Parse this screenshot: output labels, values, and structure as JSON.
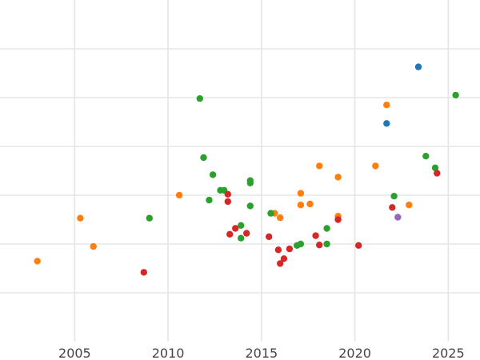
{
  "chart_data": {
    "type": "scatter",
    "title": "",
    "xlabel": "",
    "ylabel": "",
    "grid": true,
    "x_tick_labels": [
      "2005",
      "2010",
      "2015",
      "2020",
      "2025"
    ],
    "x_ticks": [
      2005,
      2010,
      2015,
      2020,
      2025
    ],
    "xlim": [
      2001.0,
      2026.7
    ],
    "y_gridlines": [
      1,
      2,
      3,
      4,
      5,
      6
    ],
    "ylim": [
      0,
      7
    ],
    "series": [
      {
        "color": "#1f77b4",
        "points": [
          [
            2023.4,
            5.63
          ],
          [
            2021.7,
            4.47
          ]
        ]
      },
      {
        "color": "#ff7f0e",
        "points": [
          [
            2003.0,
            1.65
          ],
          [
            2005.3,
            2.53
          ],
          [
            2006.0,
            1.95
          ],
          [
            2010.6,
            3.0
          ],
          [
            2015.7,
            2.63
          ],
          [
            2016.0,
            2.54
          ],
          [
            2017.1,
            3.04
          ],
          [
            2017.1,
            2.8
          ],
          [
            2017.6,
            2.82
          ],
          [
            2018.1,
            3.6
          ],
          [
            2019.1,
            3.37
          ],
          [
            2019.1,
            2.57
          ],
          [
            2021.1,
            3.6
          ],
          [
            2021.7,
            4.85
          ],
          [
            2022.9,
            2.8
          ]
        ]
      },
      {
        "color": "#2ca02c",
        "points": [
          [
            2009.0,
            2.53
          ],
          [
            2011.7,
            4.98
          ],
          [
            2011.9,
            3.77
          ],
          [
            2012.2,
            2.9
          ],
          [
            2012.4,
            3.42
          ],
          [
            2012.8,
            3.1
          ],
          [
            2013.0,
            3.1
          ],
          [
            2013.9,
            2.38
          ],
          [
            2013.9,
            2.12
          ],
          [
            2014.4,
            3.3
          ],
          [
            2014.4,
            3.25
          ],
          [
            2014.4,
            2.78
          ],
          [
            2015.5,
            2.63
          ],
          [
            2016.9,
            1.97
          ],
          [
            2017.1,
            2.0
          ],
          [
            2018.5,
            2.32
          ],
          [
            2018.5,
            2.0
          ],
          [
            2022.1,
            2.98
          ],
          [
            2023.8,
            3.8
          ],
          [
            2024.3,
            3.56
          ],
          [
            2025.4,
            5.05
          ]
        ]
      },
      {
        "color": "#d62728",
        "points": [
          [
            2008.7,
            1.42
          ],
          [
            2013.2,
            3.02
          ],
          [
            2013.2,
            2.87
          ],
          [
            2013.3,
            2.2
          ],
          [
            2013.6,
            2.32
          ],
          [
            2014.2,
            2.22
          ],
          [
            2015.4,
            2.15
          ],
          [
            2015.9,
            1.88
          ],
          [
            2016.0,
            1.6
          ],
          [
            2016.2,
            1.7
          ],
          [
            2016.5,
            1.9
          ],
          [
            2017.9,
            2.17
          ],
          [
            2018.1,
            1.98
          ],
          [
            2019.1,
            2.5
          ],
          [
            2020.2,
            1.97
          ],
          [
            2022.0,
            2.75
          ],
          [
            2024.4,
            3.45
          ]
        ]
      },
      {
        "color": "#9467bd",
        "points": [
          [
            2022.3,
            2.55
          ]
        ]
      }
    ]
  }
}
